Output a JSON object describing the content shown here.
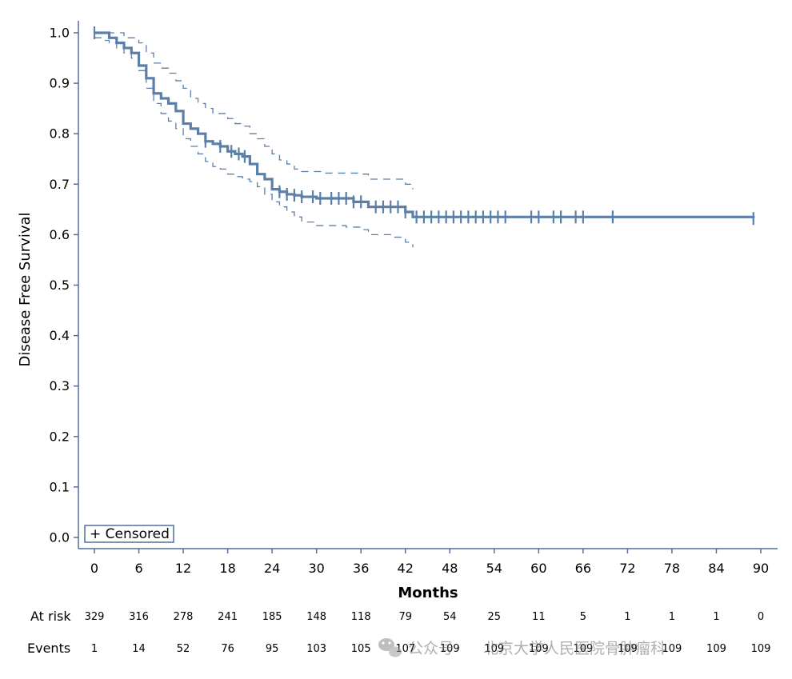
{
  "chart_data": {
    "type": "line",
    "title": "",
    "xlabel": "Months",
    "ylabel": "Disease Free Survival",
    "xlim": [
      0,
      90
    ],
    "ylim": [
      0,
      1
    ],
    "x_ticks": [
      "0",
      "6",
      "12",
      "18",
      "24",
      "30",
      "36",
      "42",
      "48",
      "54",
      "60",
      "66",
      "72",
      "78",
      "84",
      "90"
    ],
    "y_ticks": [
      "0.0",
      "0.1",
      "0.2",
      "0.3",
      "0.4",
      "0.5",
      "0.6",
      "0.7",
      "0.8",
      "0.9",
      "1.0"
    ],
    "line_color": "#5b7fa8",
    "survival_curve": [
      [
        0,
        1.0
      ],
      [
        2,
        0.99
      ],
      [
        3,
        0.98
      ],
      [
        4,
        0.97
      ],
      [
        5,
        0.96
      ],
      [
        6,
        0.935
      ],
      [
        7,
        0.91
      ],
      [
        8,
        0.88
      ],
      [
        9,
        0.87
      ],
      [
        10,
        0.86
      ],
      [
        11,
        0.845
      ],
      [
        12,
        0.82
      ],
      [
        13,
        0.81
      ],
      [
        14,
        0.8
      ],
      [
        15,
        0.785
      ],
      [
        16,
        0.78
      ],
      [
        17,
        0.775
      ],
      [
        18,
        0.765
      ],
      [
        19,
        0.76
      ],
      [
        20,
        0.755
      ],
      [
        21,
        0.74
      ],
      [
        22,
        0.72
      ],
      [
        23,
        0.71
      ],
      [
        24,
        0.69
      ],
      [
        25,
        0.685
      ],
      [
        26,
        0.68
      ],
      [
        27,
        0.678
      ],
      [
        28,
        0.675
      ],
      [
        30,
        0.672
      ],
      [
        35,
        0.665
      ],
      [
        37,
        0.655
      ],
      [
        42,
        0.645
      ],
      [
        43,
        0.635
      ],
      [
        89,
        0.632
      ]
    ],
    "upper_ci": [
      [
        0,
        1.0
      ],
      [
        4,
        0.99
      ],
      [
        6,
        0.98
      ],
      [
        7,
        0.96
      ],
      [
        8,
        0.94
      ],
      [
        9,
        0.93
      ],
      [
        10,
        0.92
      ],
      [
        11,
        0.905
      ],
      [
        12,
        0.89
      ],
      [
        13,
        0.87
      ],
      [
        14,
        0.86
      ],
      [
        15,
        0.85
      ],
      [
        16,
        0.84
      ],
      [
        18,
        0.83
      ],
      [
        19,
        0.82
      ],
      [
        20,
        0.815
      ],
      [
        21,
        0.8
      ],
      [
        22,
        0.79
      ],
      [
        23,
        0.775
      ],
      [
        24,
        0.76
      ],
      [
        25,
        0.748
      ],
      [
        26,
        0.74
      ],
      [
        27,
        0.73
      ],
      [
        28,
        0.725
      ],
      [
        31,
        0.722
      ],
      [
        36,
        0.72
      ],
      [
        37,
        0.71
      ],
      [
        42,
        0.7
      ],
      [
        43,
        0.69
      ]
    ],
    "lower_ci": [
      [
        0,
        0.99
      ],
      [
        1,
        0.985
      ],
      [
        2,
        0.98
      ],
      [
        3,
        0.97
      ],
      [
        4,
        0.96
      ],
      [
        5,
        0.95
      ],
      [
        6,
        0.925
      ],
      [
        7,
        0.89
      ],
      [
        8,
        0.86
      ],
      [
        9,
        0.84
      ],
      [
        10,
        0.825
      ],
      [
        11,
        0.81
      ],
      [
        12,
        0.79
      ],
      [
        13,
        0.775
      ],
      [
        14,
        0.76
      ],
      [
        15,
        0.745
      ],
      [
        16,
        0.735
      ],
      [
        17,
        0.73
      ],
      [
        18,
        0.72
      ],
      [
        19,
        0.715
      ],
      [
        20,
        0.71
      ],
      [
        21,
        0.705
      ],
      [
        22,
        0.695
      ],
      [
        23,
        0.68
      ],
      [
        24,
        0.665
      ],
      [
        25,
        0.655
      ],
      [
        26,
        0.645
      ],
      [
        27,
        0.635
      ],
      [
        28,
        0.625
      ],
      [
        30,
        0.618
      ],
      [
        34,
        0.615
      ],
      [
        36,
        0.61
      ],
      [
        37,
        0.6
      ],
      [
        40,
        0.595
      ],
      [
        42,
        0.585
      ],
      [
        43,
        0.575
      ]
    ],
    "censored_x": [
      0,
      15,
      17,
      18.5,
      19.5,
      20.3,
      25,
      26,
      27,
      28,
      29.5,
      30.5,
      32,
      33,
      34,
      35,
      36,
      38,
      39,
      40,
      41,
      42,
      43.5,
      44.5,
      45.5,
      46.5,
      47.5,
      48.5,
      49.5,
      50.5,
      51.5,
      52.5,
      53.5,
      54.5,
      55.5,
      59,
      60,
      62,
      63,
      65,
      66,
      70,
      89
    ],
    "legend": {
      "label": "+ Censored",
      "placement": "bottom-left"
    },
    "risk_table": {
      "at_risk_label": "At risk",
      "events_label": "Events",
      "at_risk": [
        "329",
        "316",
        "278",
        "241",
        "185",
        "148",
        "118",
        "79",
        "54",
        "25",
        "11",
        "5",
        "1",
        "1",
        "1",
        "0"
      ],
      "events": [
        "1",
        "14",
        "52",
        "76",
        "95",
        "103",
        "105",
        "107",
        "109",
        "109",
        "109",
        "109",
        "109",
        "109",
        "109",
        "109"
      ]
    },
    "grid": false
  },
  "watermark": {
    "account_label": "公众号",
    "department_label": "北京大学人民医院骨肿瘤科",
    "logo_icon": "wechat-icon"
  }
}
